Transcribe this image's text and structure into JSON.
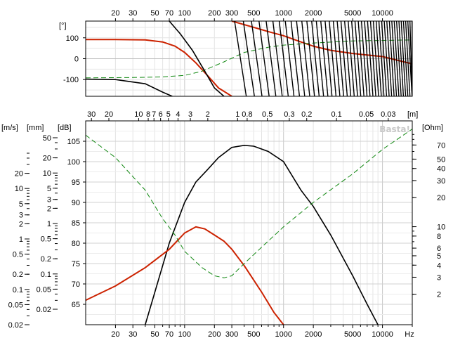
{
  "chart_data": [
    {
      "type": "line",
      "panel": "phase",
      "x_scale": "log",
      "xlim": [
        10,
        20000
      ],
      "ylim": [
        -180,
        180
      ],
      "y_unit_label": "[°]",
      "y_ticks": [
        100,
        0,
        -100
      ],
      "x_tick_labels": [
        "20",
        "30",
        "50",
        "70",
        "100",
        "200",
        "300",
        "500",
        "1000",
        "2000",
        "5000",
        "10000"
      ],
      "x_tick_values": [
        20,
        30,
        50,
        70,
        100,
        200,
        300,
        500,
        1000,
        2000,
        5000,
        10000
      ],
      "series": [
        {
          "style": "solid",
          "color": "#cc2200",
          "x": [
            10,
            20,
            40,
            60,
            80,
            100,
            130,
            170,
            220,
            300
          ],
          "y": [
            92,
            92,
            90,
            80,
            60,
            30,
            -20,
            -80,
            -140,
            -180
          ]
        },
        {
          "style": "solid",
          "color": "#cc2200",
          "x": [
            300,
            500,
            700,
            1000,
            1500,
            2000,
            3000,
            5000,
            10000,
            20000
          ],
          "y": [
            180,
            150,
            130,
            110,
            80,
            60,
            40,
            25,
            10,
            -25
          ]
        },
        {
          "style": "dashed",
          "color": "#118811",
          "x": [
            10,
            30,
            60,
            100,
            150,
            250,
            400,
            700,
            1000,
            2000,
            5000,
            20000
          ],
          "y": [
            -92,
            -90,
            -87,
            -80,
            -60,
            -15,
            30,
            55,
            65,
            75,
            85,
            90
          ]
        },
        {
          "style": "solid",
          "color": "#000000",
          "x": [
            10,
            20,
            40,
            60,
            75
          ],
          "y": [
            -98,
            -100,
            -120,
            -160,
            -180
          ]
        },
        {
          "style": "solid",
          "color": "#000000",
          "x": [
            70,
            90,
            120,
            160,
            200,
            250
          ],
          "y": [
            180,
            120,
            40,
            -60,
            -140,
            -180
          ]
        }
      ]
    },
    {
      "type": "line",
      "panel": "response",
      "x_scale": "log",
      "xlim": [
        10,
        20000
      ],
      "ylim": [
        60,
        110
      ],
      "left_axis_labels": [
        "[m/s]",
        "[mm]",
        "[dB]"
      ],
      "right_axis_label": "[Ohm]",
      "top_axis_label": "[m]",
      "db_ticks": [
        105,
        100,
        95,
        90,
        85,
        80,
        75,
        70,
        65
      ],
      "ms_ticks": [
        "20",
        "10",
        "5",
        "3",
        "2",
        "1",
        "0.5",
        "0.2",
        "0.1",
        "0.05",
        "0.02"
      ],
      "mm_ticks": [
        "50",
        "20",
        "10",
        "5",
        "3",
        "2",
        "1",
        "0.5",
        "0.2",
        "0.1",
        "0.05",
        "0.02"
      ],
      "ohm_ticks": [
        "70",
        "50",
        "40",
        "30",
        "20",
        "10",
        "8",
        "6",
        "5",
        "4",
        "3",
        "2"
      ],
      "m_ticks": [
        "30",
        "20",
        "10",
        "8",
        "7",
        "6",
        "5",
        "4",
        "3",
        "2",
        "1",
        "0.8",
        "0.5",
        "0.3",
        "0.2",
        "0.1",
        "0.05",
        "0.03"
      ],
      "x_tick_labels": [
        "20",
        "30",
        "50",
        "70",
        "100",
        "200",
        "300",
        "500",
        "1000",
        "2000",
        "5000",
        "10000",
        "Hz"
      ],
      "x_tick_values": [
        20,
        30,
        50,
        70,
        100,
        200,
        300,
        500,
        1000,
        2000,
        5000,
        10000
      ],
      "watermark": "Basta!",
      "series": [
        {
          "style": "solid",
          "color": "#000000",
          "x": [
            40,
            50,
            70,
            100,
            130,
            170,
            220,
            300,
            400,
            500,
            700,
            1000,
            1500,
            2000,
            3000,
            5000,
            7000,
            9000
          ],
          "y": [
            60,
            68,
            80,
            90,
            95,
            98,
            101,
            103.5,
            104,
            103.8,
            102.5,
            100,
            93,
            89,
            82,
            72,
            65,
            60
          ]
        },
        {
          "style": "solid",
          "color": "#cc2200",
          "x": [
            10,
            20,
            40,
            70,
            100,
            130,
            160,
            200,
            250,
            300,
            400,
            600,
            800,
            1000
          ],
          "y": [
            66,
            69.5,
            74,
            78.5,
            82.5,
            84,
            83.5,
            82,
            80.5,
            78.5,
            74.5,
            68,
            63,
            60
          ]
        },
        {
          "style": "dashed",
          "color": "#118811",
          "x": [
            10,
            20,
            40,
            60,
            80,
            100,
            150,
            200,
            250,
            300,
            400,
            600,
            1000,
            2000,
            5000,
            10000,
            20000
          ],
          "y": [
            106.5,
            101,
            93,
            86,
            82,
            78,
            74,
            72,
            71.5,
            72,
            75,
            79,
            84,
            90,
            97,
            103,
            108
          ]
        }
      ]
    }
  ]
}
